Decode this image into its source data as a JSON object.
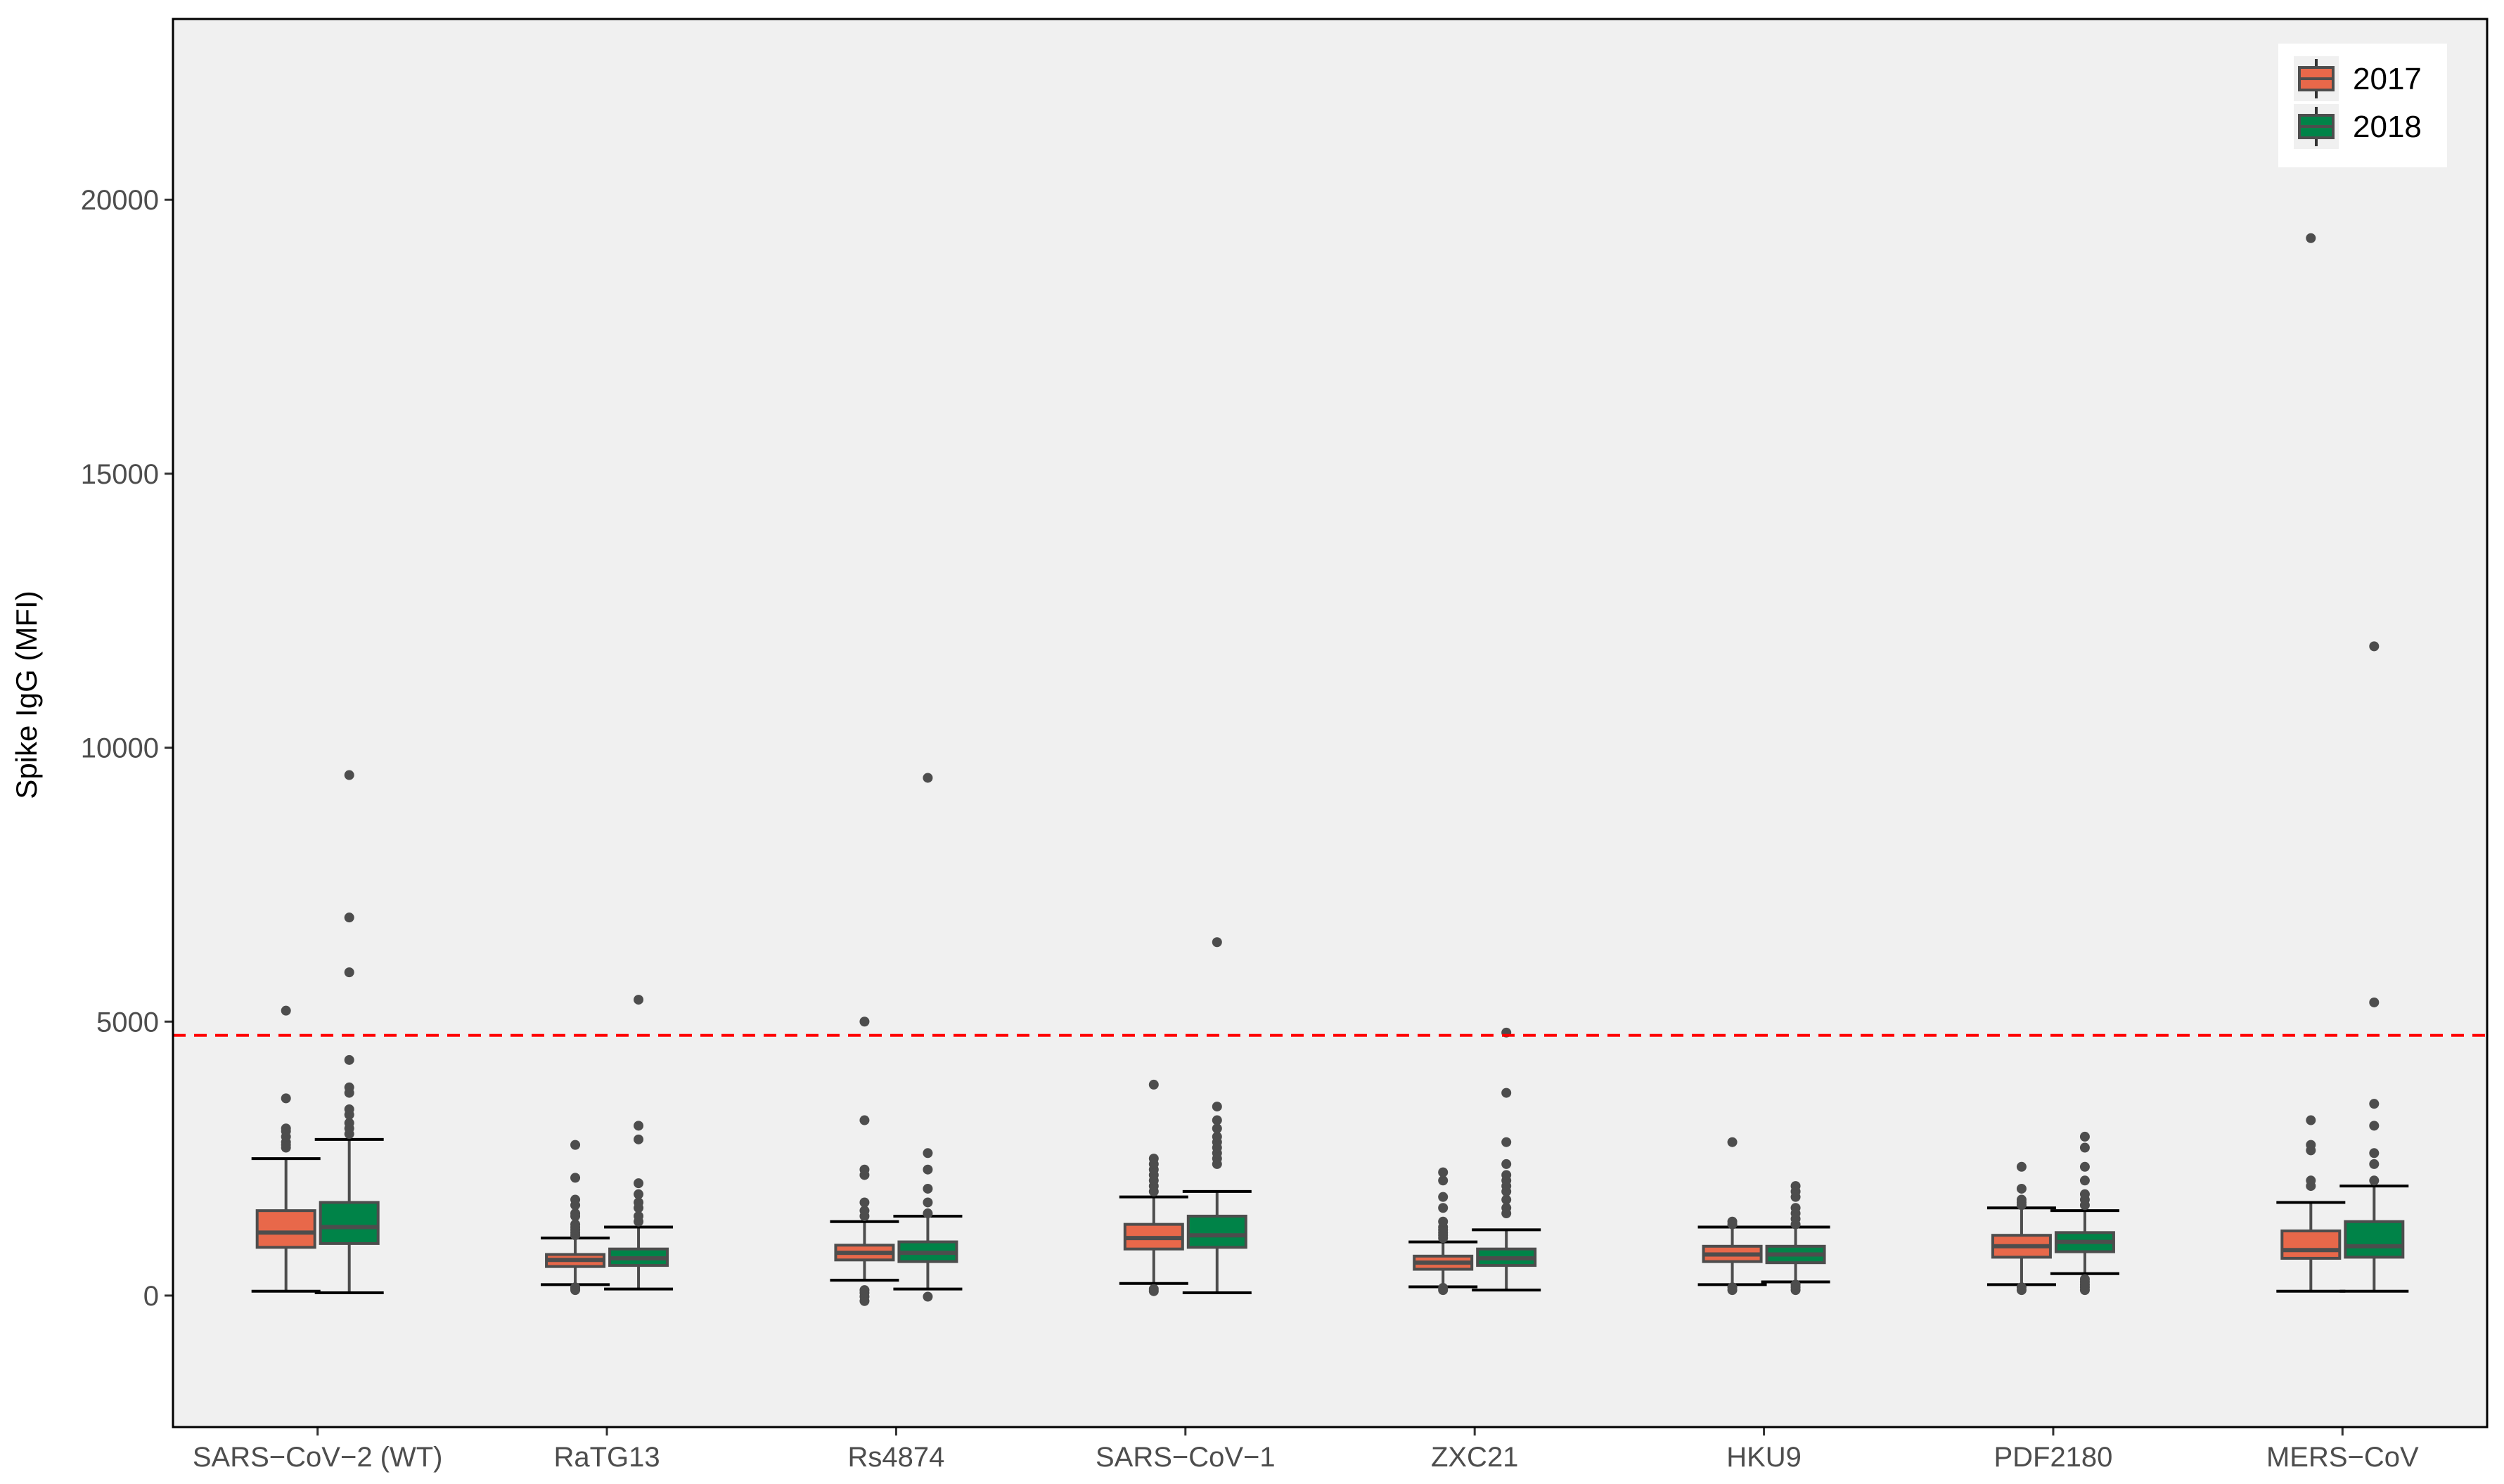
{
  "chart_data": {
    "type": "boxplot",
    "title": "",
    "xlabel": "",
    "ylabel": "Spike IgG (MFI)",
    "ylim": [
      -2400,
      23300
    ],
    "yticks": [
      0,
      5000,
      10000,
      15000,
      20000
    ],
    "grid": false,
    "legend_position": "top-right",
    "threshold": {
      "value": 4750,
      "color": "#ff0000",
      "style": "dashed"
    },
    "colors": {
      "panel": "#f0f0f0",
      "border": "#000000",
      "box_outline": "#4d4d4d",
      "whisker": "#000000",
      "outlier": "#4d4d4d"
    },
    "categories": [
      "SARS−CoV−2 (WT)",
      "RaTG13",
      "Rs4874",
      "SARS−CoV−1",
      "ZXC21",
      "HKU9",
      "PDF2180",
      "MERS−CoV"
    ],
    "series": [
      {
        "name": "2017",
        "color": "#e8684a",
        "boxes": [
          {
            "whislo": 80,
            "q1": 880,
            "med": 1150,
            "q3": 1550,
            "whishi": 2500,
            "fliers": [
              2700,
              2750,
              2800,
              2900,
              3000,
              3050,
              3600,
              5200
            ]
          },
          {
            "whislo": 200,
            "q1": 530,
            "med": 650,
            "q3": 750,
            "whishi": 1050,
            "fliers": [
              100,
              130,
              150,
              1100,
              1150,
              1200,
              1250,
              1300,
              1450,
              1500,
              1650,
              1750,
              2150,
              2750
            ]
          },
          {
            "whislo": 280,
            "q1": 650,
            "med": 780,
            "q3": 920,
            "whishi": 1350,
            "fliers": [
              -100,
              -20,
              50,
              100,
              1450,
              1550,
              1700,
              2200,
              2300,
              3200,
              5000
            ]
          },
          {
            "whislo": 220,
            "q1": 850,
            "med": 1050,
            "q3": 1300,
            "whishi": 1800,
            "fliers": [
              80,
              120,
              1900,
              2000,
              2100,
              2200,
              2300,
              2400,
              2500,
              3850
            ]
          },
          {
            "whislo": 160,
            "q1": 480,
            "med": 600,
            "q3": 720,
            "whishi": 980,
            "fliers": [
              100,
              140,
              1050,
              1100,
              1150,
              1200,
              1250,
              1350,
              1600,
              1800,
              2100,
              2250
            ]
          },
          {
            "whislo": 200,
            "q1": 620,
            "med": 750,
            "q3": 900,
            "whishi": 1250,
            "fliers": [
              100,
              150,
              1300,
              1350,
              2800
            ]
          },
          {
            "whislo": 200,
            "q1": 700,
            "med": 900,
            "q3": 1100,
            "whishi": 1600,
            "fliers": [
              100,
              150,
              1650,
              1700,
              1750,
              1950,
              2350
            ]
          },
          {
            "whislo": 80,
            "q1": 680,
            "med": 830,
            "q3": 1180,
            "whishi": 1700,
            "fliers": [
              2000,
              2100,
              2650,
              2750,
              3200,
              19300
            ]
          }
        ]
      },
      {
        "name": "2018",
        "color": "#008348",
        "boxes": [
          {
            "whislo": 50,
            "q1": 950,
            "med": 1250,
            "q3": 1700,
            "whishi": 2850,
            "fliers": [
              2950,
              3050,
              3150,
              3300,
              3400,
              3700,
              3800,
              4300,
              5900,
              6900,
              9500
            ]
          },
          {
            "whislo": 120,
            "q1": 550,
            "med": 680,
            "q3": 850,
            "whishi": 1250,
            "fliers": [
              1350,
              1450,
              1600,
              1700,
              1850,
              2050,
              2850,
              3100,
              5400
            ]
          },
          {
            "whislo": 120,
            "q1": 620,
            "med": 780,
            "q3": 980,
            "whishi": 1450,
            "fliers": [
              -20,
              1500,
              1700,
              1950,
              2300,
              2600,
              9450
            ]
          },
          {
            "whislo": 50,
            "q1": 880,
            "med": 1100,
            "q3": 1450,
            "whishi": 1900,
            "fliers": [
              2400,
              2500,
              2600,
              2700,
              2800,
              2900,
              3050,
              3200,
              3450,
              6450
            ]
          },
          {
            "whislo": 100,
            "q1": 550,
            "med": 680,
            "q3": 850,
            "whishi": 1200,
            "fliers": [
              1500,
              1600,
              1750,
              1900,
              2000,
              2100,
              2200,
              2400,
              2800,
              3700,
              4800
            ]
          },
          {
            "whislo": 250,
            "q1": 600,
            "med": 750,
            "q3": 900,
            "whishi": 1250,
            "fliers": [
              100,
              150,
              200,
              1300,
              1400,
              1500,
              1600,
              1800,
              1900,
              2000
            ]
          },
          {
            "whislo": 400,
            "q1": 800,
            "med": 980,
            "q3": 1150,
            "whishi": 1550,
            "fliers": [
              100,
              150,
              200,
              250,
              300,
              1650,
              1750,
              1850,
              2100,
              2350,
              2700,
              2900
            ]
          },
          {
            "whislo": 80,
            "q1": 700,
            "med": 900,
            "q3": 1350,
            "whishi": 2000,
            "fliers": [
              2100,
              2400,
              2600,
              3100,
              3500,
              5350,
              11850
            ]
          }
        ]
      }
    ]
  }
}
